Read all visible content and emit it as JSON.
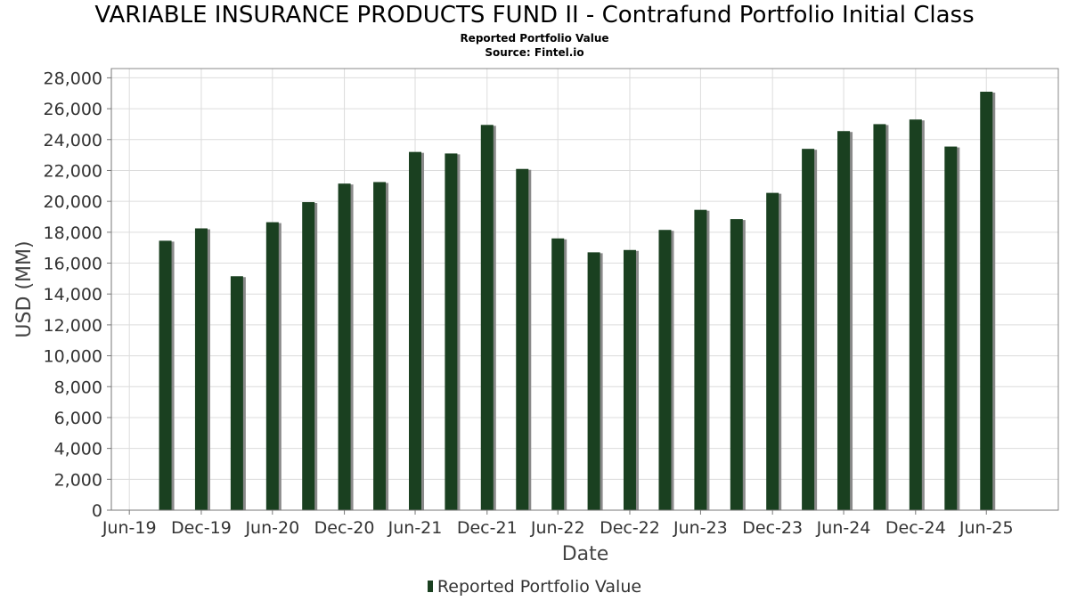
{
  "chart_data": {
    "type": "bar",
    "title": "VARIABLE INSURANCE PRODUCTS FUND II - Contrafund Portfolio Initial Class",
    "subtitle": "Reported Portfolio Value",
    "source": "Source: Fintel.io",
    "xlabel": "Date",
    "ylabel": "USD (MM)",
    "ylim": [
      0,
      28600
    ],
    "yticks": [
      0,
      2000,
      4000,
      6000,
      8000,
      10000,
      12000,
      14000,
      16000,
      18000,
      20000,
      22000,
      24000,
      26000,
      28000
    ],
    "ytick_labels": [
      "0",
      "2,000",
      "4,000",
      "6,000",
      "8,000",
      "10,000",
      "12,000",
      "14,000",
      "16,000",
      "18,000",
      "20,000",
      "22,000",
      "24,000",
      "26,000",
      "28,000"
    ],
    "xticks": [
      "2019-06-30",
      "2019-12-31",
      "2020-06-30",
      "2020-12-31",
      "2021-06-30",
      "2021-12-31",
      "2022-06-30",
      "2022-12-31",
      "2023-06-30",
      "2023-12-31",
      "2024-06-30",
      "2024-12-31",
      "2025-06-30"
    ],
    "xtick_labels": [
      "Jun-19",
      "Dec-19",
      "Jun-20",
      "Dec-20",
      "Jun-21",
      "Dec-21",
      "Jun-22",
      "Dec-22",
      "Jun-23",
      "Dec-23",
      "Jun-24",
      "Dec-24",
      "Jun-25"
    ],
    "xlim": [
      "2019-05-15",
      "2025-12-31"
    ],
    "grid": true,
    "legend_position": "bottom",
    "colors": {
      "bar": "#1a4020",
      "shadow": "#8a8a8a"
    },
    "series": [
      {
        "name": "Reported Portfolio Value",
        "x": [
          "2019-09-30",
          "2019-12-31",
          "2020-03-31",
          "2020-06-30",
          "2020-09-30",
          "2020-12-31",
          "2021-03-31",
          "2021-06-30",
          "2021-09-30",
          "2021-12-31",
          "2022-03-31",
          "2022-06-30",
          "2022-09-30",
          "2022-12-31",
          "2023-03-31",
          "2023-06-30",
          "2023-09-30",
          "2023-12-31",
          "2024-03-31",
          "2024-06-30",
          "2024-09-30",
          "2024-12-31",
          "2025-03-31",
          "2025-06-30"
        ],
        "values": [
          17450,
          18250,
          15150,
          18650,
          19950,
          21150,
          21250,
          23200,
          23100,
          24950,
          22100,
          17600,
          16700,
          16850,
          18150,
          19450,
          18850,
          20550,
          23400,
          24550,
          25000,
          25300,
          23550,
          27100
        ]
      }
    ]
  }
}
